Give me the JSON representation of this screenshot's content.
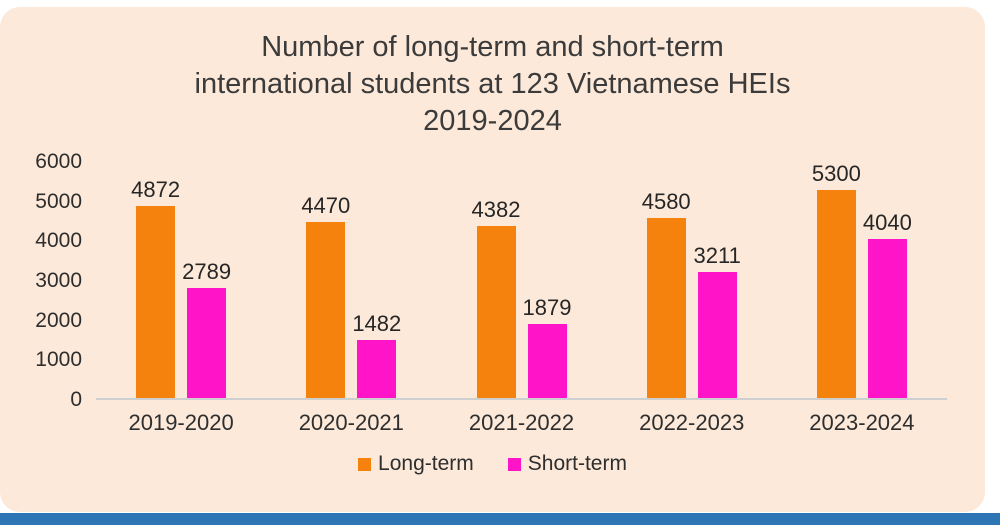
{
  "page": {
    "panel_bg": "#fce9d9",
    "footer_accent_color": "#2e75b6"
  },
  "title": {
    "lines": [
      "Number of long-term and short-term",
      "international students at 123 Vietnamese HEIs",
      "2019-2024"
    ]
  },
  "chart_data": {
    "type": "bar",
    "title": "Number of long-term and short-term international students at 123 Vietnamese HEIs 2019-2024",
    "categories": [
      "2019-2020",
      "2020-2021",
      "2021-2022",
      "2022-2023",
      "2023-2024"
    ],
    "series": [
      {
        "name": "Long-term",
        "color": "#f5820d",
        "values": [
          4872,
          4470,
          4382,
          4580,
          5300
        ]
      },
      {
        "name": "Short-term",
        "color": "#ff14c8",
        "values": [
          2789,
          1482,
          1879,
          3211,
          4040
        ]
      }
    ],
    "xlabel": "",
    "ylabel": "",
    "ylim": [
      0,
      6000
    ],
    "yticks": [
      0,
      1000,
      2000,
      3000,
      4000,
      5000,
      6000
    ],
    "grid": false,
    "data_labels": true,
    "legend_position": "bottom"
  }
}
